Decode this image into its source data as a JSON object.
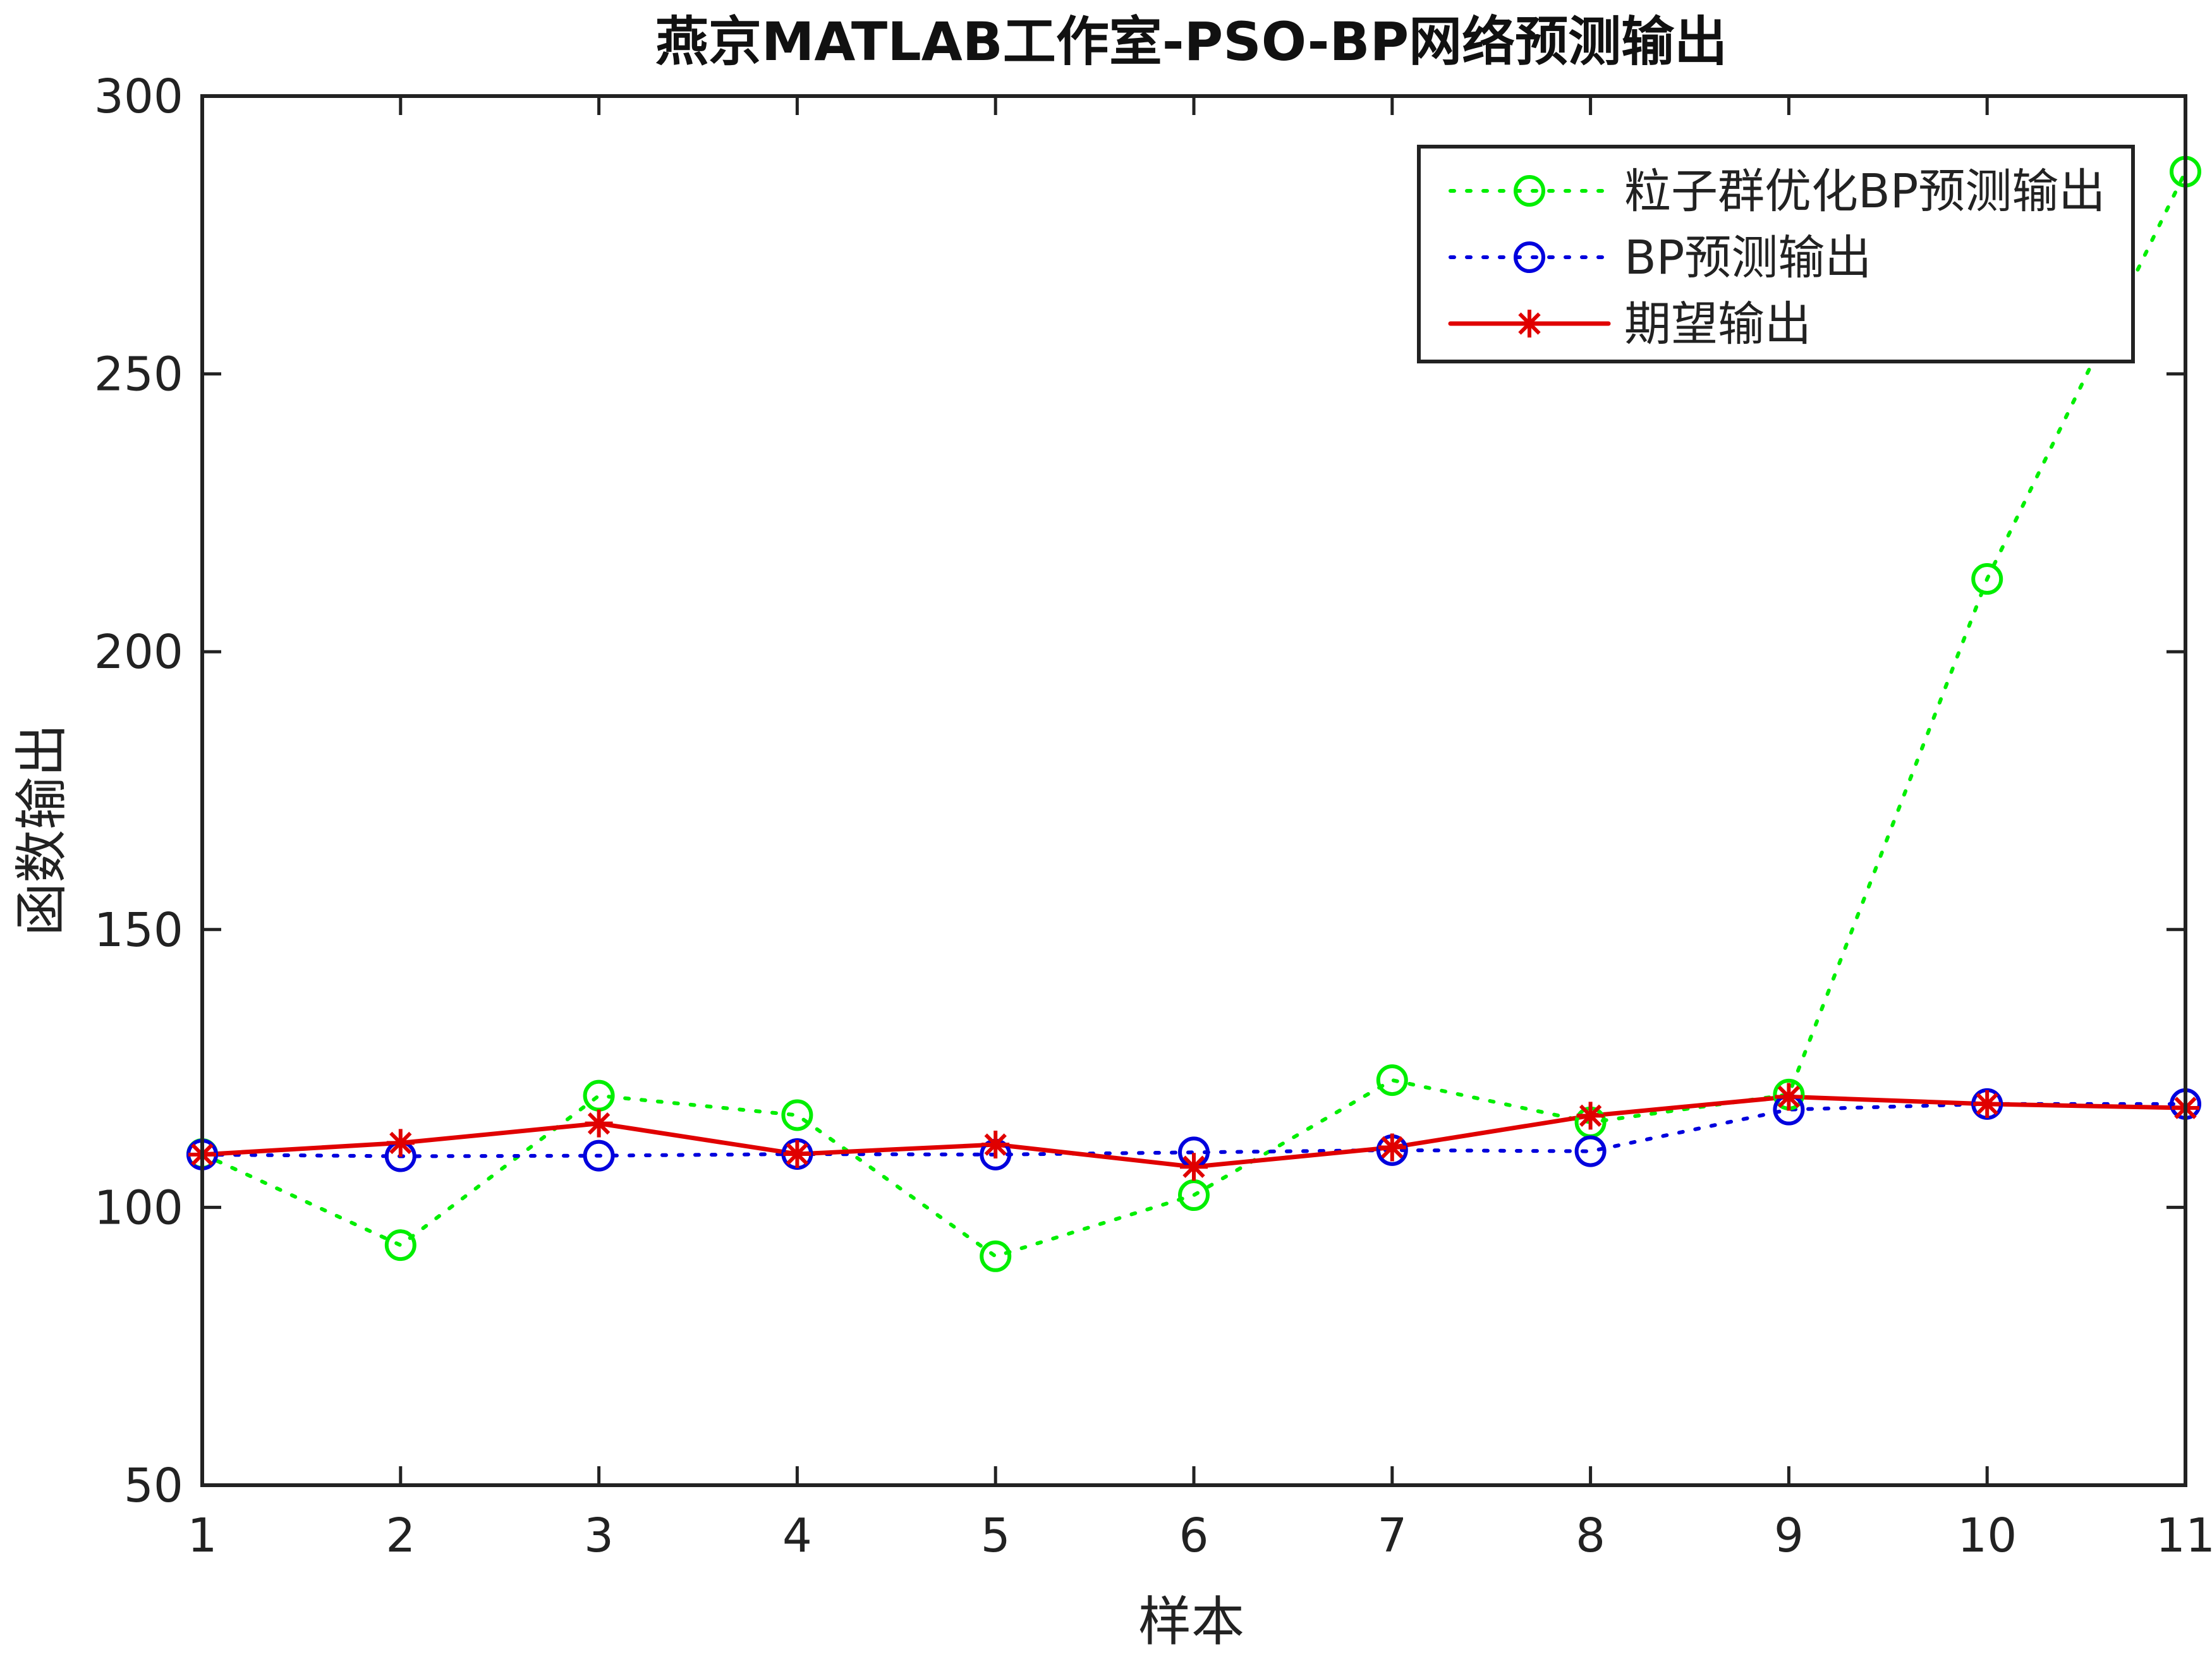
{
  "chart_data": {
    "type": "line",
    "title": "燕京MATLAB工作室-PSO-BP网络预测输出",
    "xlabel": "样本",
    "ylabel": "函数输出",
    "xlim": [
      1,
      11
    ],
    "ylim": [
      50,
      300
    ],
    "xticks": [
      "1",
      "2",
      "3",
      "4",
      "5",
      "6",
      "7",
      "8",
      "9",
      "10",
      "11"
    ],
    "yticks": [
      "50",
      "100",
      "150",
      "200",
      "250",
      "300"
    ],
    "x": [
      1,
      2,
      3,
      4,
      5,
      6,
      7,
      8,
      9,
      10,
      11
    ],
    "grid": false,
    "legend_position": "top-right",
    "series": [
      {
        "name": "粒子群优化BP预测输出",
        "color": "#00ee00",
        "line": "dotted",
        "marker": "circle",
        "values": [
          109.6,
          93.2,
          120.1,
          116.6,
          91.2,
          102.2,
          122.9,
          115.3,
          120.3,
          213.1,
          286.4
        ]
      },
      {
        "name": "BP预测输出",
        "color": "#0000dd",
        "line": "dotted",
        "marker": "circle",
        "values": [
          109.5,
          109.2,
          109.3,
          109.6,
          109.5,
          109.9,
          110.3,
          110.1,
          117.6,
          118.6,
          118.6
        ]
      },
      {
        "name": "期望输出",
        "color": "#e00000",
        "line": "solid",
        "marker": "asterisk",
        "values": [
          109.5,
          111.6,
          115.1,
          109.6,
          111.3,
          107.3,
          110.8,
          116.5,
          119.9,
          118.6,
          117.9
        ]
      }
    ]
  }
}
